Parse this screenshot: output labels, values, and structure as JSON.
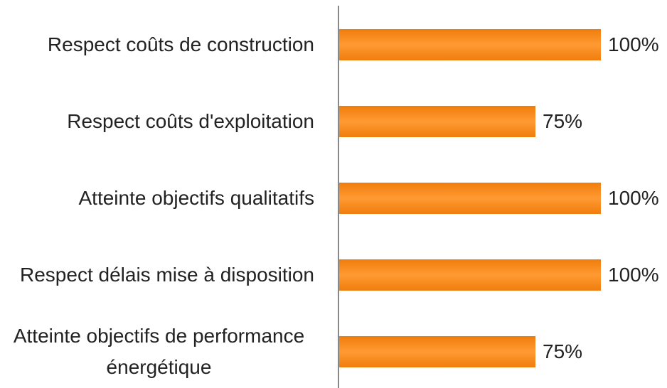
{
  "chart_data": {
    "type": "bar",
    "orientation": "horizontal",
    "categories": [
      "Respect coûts de construction",
      "Respect coûts d'exploitation",
      "Atteinte objectifs qualitatifs",
      "Respect délais mise à disposition",
      "Atteinte objectifs de performance énergétique"
    ],
    "values": [
      100,
      75,
      100,
      100,
      75
    ],
    "value_labels": [
      "100%",
      "75%",
      "100%",
      "100%",
      "75%"
    ],
    "color": "#f07d0c"
  }
}
